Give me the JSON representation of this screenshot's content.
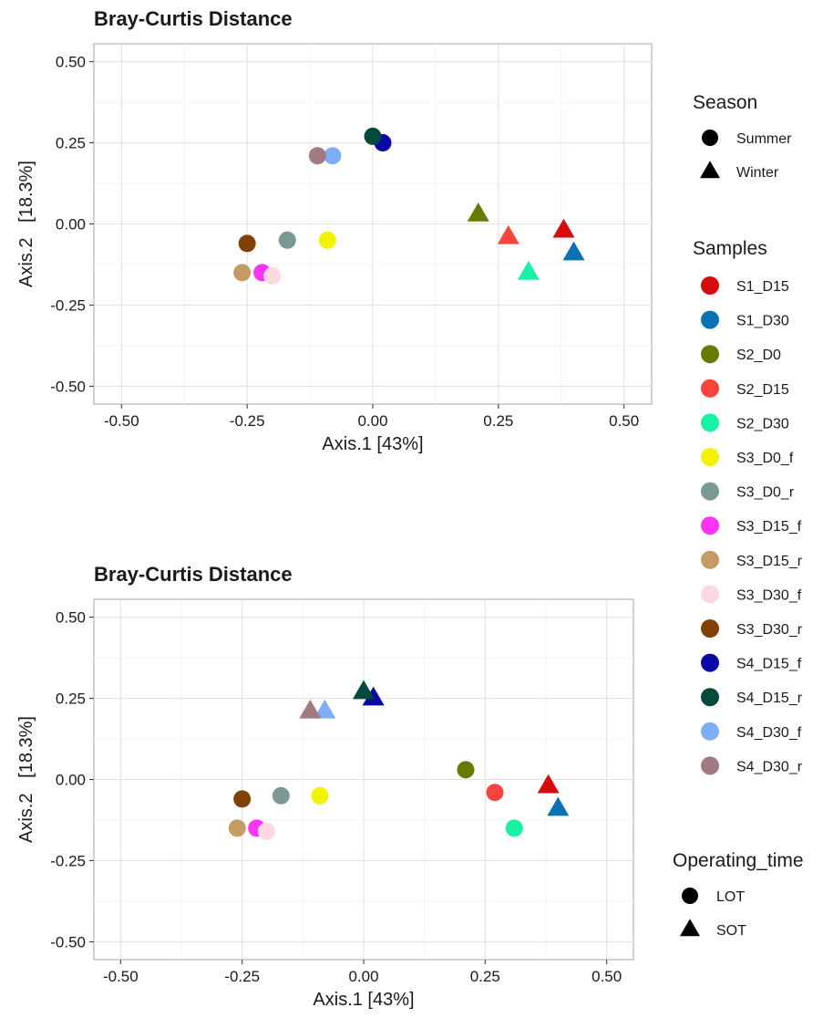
{
  "colors": {
    "S1_D15": "#d70b0b",
    "S1_D30": "#0a72b0",
    "S2_D0": "#687a00",
    "S2_D15": "#f8443d",
    "S2_D30": "#1bf1a2",
    "S3_D0_f": "#f4f204",
    "S3_D0_r": "#7c9893",
    "S3_D15_f": "#fd33f6",
    "S3_D15_r": "#c49b65",
    "S3_D30_f": "#fcd8e3",
    "S3_D30_r": "#7f4204",
    "S4_D15_f": "#0a08a6",
    "S4_D15_r": "#034a3c",
    "S4_D30_f": "#7fadf6",
    "S4_D30_r": "#a27a82"
  },
  "chart_data": [
    {
      "type": "scatter",
      "title": "Bray-Curtis Distance",
      "xlabel": "Axis.1   [43%]",
      "ylabel": "Axis.2   [18.3%]",
      "xlim": [
        -0.5,
        0.5
      ],
      "ylim": [
        -0.5,
        0.5
      ],
      "xticks": [
        "-0.50",
        "-0.25",
        "0.00",
        "0.25",
        "0.50"
      ],
      "yticks": [
        "0.50",
        "0.25",
        "0.00",
        "-0.25",
        "-0.50"
      ],
      "grid": true,
      "shape_by": "Season",
      "color_by": "Samples",
      "points": [
        {
          "sample": "S1_D15",
          "x": 0.38,
          "y": -0.02,
          "shape": "Winter"
        },
        {
          "sample": "S1_D30",
          "x": 0.4,
          "y": -0.09,
          "shape": "Winter"
        },
        {
          "sample": "S2_D0",
          "x": 0.21,
          "y": 0.03,
          "shape": "Winter"
        },
        {
          "sample": "S2_D15",
          "x": 0.27,
          "y": -0.04,
          "shape": "Winter"
        },
        {
          "sample": "S2_D30",
          "x": 0.31,
          "y": -0.15,
          "shape": "Winter"
        },
        {
          "sample": "S3_D0_f",
          "x": -0.09,
          "y": -0.05,
          "shape": "Summer"
        },
        {
          "sample": "S3_D0_r",
          "x": -0.17,
          "y": -0.05,
          "shape": "Summer"
        },
        {
          "sample": "S3_D15_f",
          "x": -0.22,
          "y": -0.15,
          "shape": "Summer"
        },
        {
          "sample": "S3_D15_r",
          "x": -0.26,
          "y": -0.15,
          "shape": "Summer"
        },
        {
          "sample": "S3_D30_f",
          "x": -0.2,
          "y": -0.16,
          "shape": "Summer"
        },
        {
          "sample": "S3_D30_r",
          "x": -0.25,
          "y": -0.06,
          "shape": "Summer"
        },
        {
          "sample": "S4_D15_f",
          "x": 0.02,
          "y": 0.25,
          "shape": "Summer"
        },
        {
          "sample": "S4_D15_r",
          "x": 0.0,
          "y": 0.27,
          "shape": "Summer"
        },
        {
          "sample": "S4_D30_f",
          "x": -0.08,
          "y": 0.21,
          "shape": "Summer"
        },
        {
          "sample": "S4_D30_r",
          "x": -0.11,
          "y": 0.21,
          "shape": "Summer"
        }
      ]
    },
    {
      "type": "scatter",
      "title": "Bray-Curtis Distance",
      "xlabel": "Axis.1   [43%]",
      "ylabel": "Axis.2   [18.3%]",
      "xlim": [
        -0.5,
        0.5
      ],
      "ylim": [
        -0.5,
        0.5
      ],
      "xticks": [
        "-0.50",
        "-0.25",
        "0.00",
        "0.25",
        "0.50"
      ],
      "yticks": [
        "0.50",
        "0.25",
        "0.00",
        "-0.25",
        "-0.50"
      ],
      "grid": true,
      "shape_by": "Operating_time",
      "color_by": "Samples",
      "points": [
        {
          "sample": "S1_D15",
          "x": 0.38,
          "y": -0.02,
          "shape": "SOT"
        },
        {
          "sample": "S1_D30",
          "x": 0.4,
          "y": -0.09,
          "shape": "SOT"
        },
        {
          "sample": "S2_D0",
          "x": 0.21,
          "y": 0.03,
          "shape": "LOT"
        },
        {
          "sample": "S2_D15",
          "x": 0.27,
          "y": -0.04,
          "shape": "LOT"
        },
        {
          "sample": "S2_D30",
          "x": 0.31,
          "y": -0.15,
          "shape": "LOT"
        },
        {
          "sample": "S3_D0_f",
          "x": -0.09,
          "y": -0.05,
          "shape": "LOT"
        },
        {
          "sample": "S3_D0_r",
          "x": -0.17,
          "y": -0.05,
          "shape": "LOT"
        },
        {
          "sample": "S3_D15_f",
          "x": -0.22,
          "y": -0.15,
          "shape": "LOT"
        },
        {
          "sample": "S3_D15_r",
          "x": -0.26,
          "y": -0.15,
          "shape": "LOT"
        },
        {
          "sample": "S3_D30_f",
          "x": -0.2,
          "y": -0.16,
          "shape": "LOT"
        },
        {
          "sample": "S3_D30_r",
          "x": -0.25,
          "y": -0.06,
          "shape": "LOT"
        },
        {
          "sample": "S4_D15_f",
          "x": 0.02,
          "y": 0.25,
          "shape": "SOT"
        },
        {
          "sample": "S4_D15_r",
          "x": 0.0,
          "y": 0.27,
          "shape": "SOT"
        },
        {
          "sample": "S4_D30_f",
          "x": -0.08,
          "y": 0.21,
          "shape": "SOT"
        },
        {
          "sample": "S4_D30_r",
          "x": -0.11,
          "y": 0.21,
          "shape": "SOT"
        }
      ]
    }
  ],
  "legends": {
    "season": {
      "title": "Season",
      "items": [
        {
          "label": "Summer",
          "shape": "circle"
        },
        {
          "label": "Winter",
          "shape": "triangle"
        }
      ]
    },
    "samples": {
      "title": "Samples",
      "items": [
        "S1_D15",
        "S1_D30",
        "S2_D0",
        "S2_D15",
        "S2_D30",
        "S3_D0_f",
        "S3_D0_r",
        "S3_D15_f",
        "S3_D15_r",
        "S3_D30_f",
        "S3_D30_r",
        "S4_D15_f",
        "S4_D15_r",
        "S4_D30_f",
        "S4_D30_r"
      ]
    },
    "operating_time": {
      "title": "Operating_time",
      "items": [
        {
          "label": "LOT",
          "shape": "circle"
        },
        {
          "label": "SOT",
          "shape": "triangle"
        }
      ]
    }
  }
}
